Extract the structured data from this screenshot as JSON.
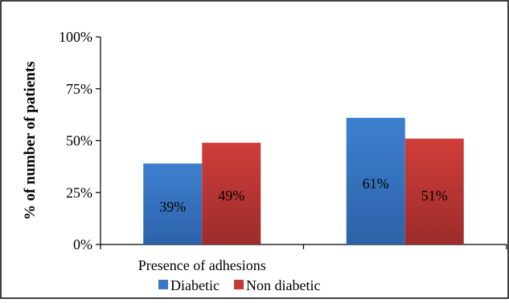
{
  "chart_data": {
    "type": "bar",
    "categories": [
      "Presence of adhesions",
      ""
    ],
    "series": [
      {
        "name": "Diabetic",
        "values": [
          39,
          61
        ],
        "labels": [
          "39%",
          "61%"
        ],
        "color": "#3a78c6"
      },
      {
        "name": "Non diabetic",
        "values": [
          49,
          51
        ],
        "labels": [
          "49%",
          "51%"
        ],
        "color": "#c23a36"
      }
    ],
    "ylabel": "% of number of patients",
    "xlabel": "",
    "ylim": [
      0,
      100
    ],
    "yticks": [
      {
        "value": 0,
        "label": "0%"
      },
      {
        "value": 25,
        "label": "25%"
      },
      {
        "value": 50,
        "label": "50%"
      },
      {
        "value": 75,
        "label": "75%"
      },
      {
        "value": 100,
        "label": "100%"
      }
    ],
    "grid": false,
    "legend": "bottom"
  }
}
